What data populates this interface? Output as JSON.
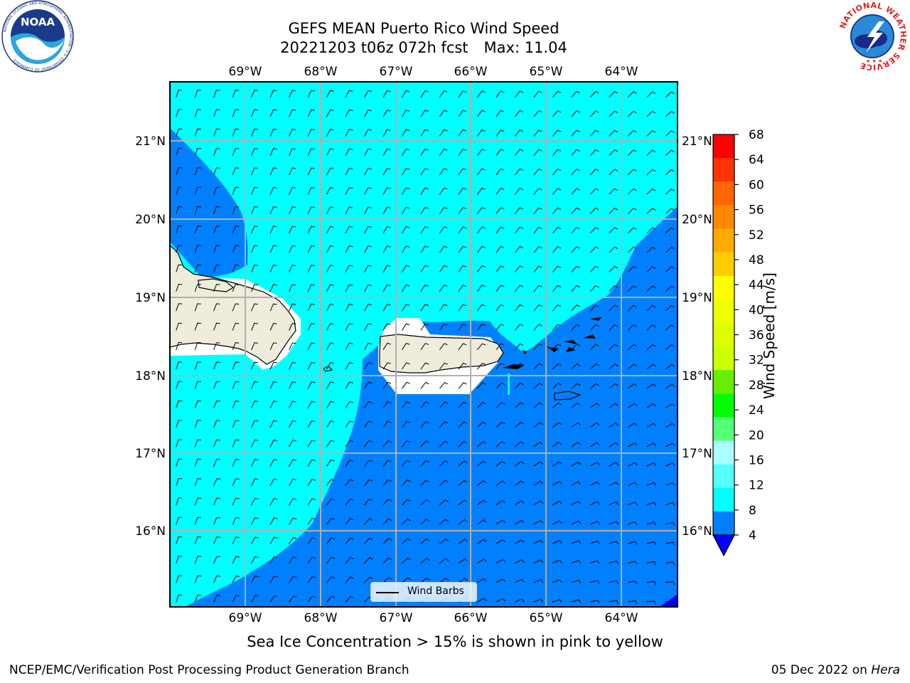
{
  "title": {
    "line1": "GEFS MEAN Puerto Rico Wind Speed",
    "run": "20221203 t06z 072h fcst",
    "max": "Max: 11.04"
  },
  "logos": {
    "left": {
      "name": "NOAA",
      "circle_text": "NATIONAL OCEANIC AND ATMOSPHERIC ADMINISTRATION · U.S. DEPARTMENT OF COMMERCE"
    },
    "right": {
      "name": "NATIONAL WEATHER SERVICE"
    }
  },
  "map": {
    "lon_labels": [
      "69°W",
      "68°W",
      "67°W",
      "66°W",
      "65°W",
      "64°W"
    ],
    "lat_labels": [
      "21°N",
      "20°N",
      "19°N",
      "18°N",
      "17°N",
      "16°N"
    ],
    "colors": {
      "land": "#efecdc",
      "cyan": "#00ffff",
      "blue": "#0080ff",
      "dark_blue": "#0000ff"
    }
  },
  "legend": {
    "label": "Wind Barbs"
  },
  "colorbar": {
    "title": "Wind Speed [m/s]",
    "ticks": [
      "68",
      "64",
      "60",
      "56",
      "52",
      "48",
      "44",
      "40",
      "36",
      "32",
      "28",
      "24",
      "20",
      "16",
      "12",
      "8",
      "4"
    ],
    "colors_top_down": [
      "#ff0000",
      "#ff3300",
      "#ff6600",
      "#ff8800",
      "#ffaa00",
      "#ffcc00",
      "#ffff00",
      "#f0ff00",
      "#ddff00",
      "#ccff00",
      "#66ee00",
      "#00ff00",
      "#55ff77",
      "#aaffff",
      "#55ffff",
      "#00ffff",
      "#0080ff"
    ],
    "under_color": "#0000ff"
  },
  "caption": "Sea Ice Concentration > 15% is shown in pink to yellow",
  "footer": {
    "left": "NCEP/EMC/Verification Post Processing Product Generation Branch",
    "date": "05 Dec 2022 on",
    "host": "Hera"
  }
}
